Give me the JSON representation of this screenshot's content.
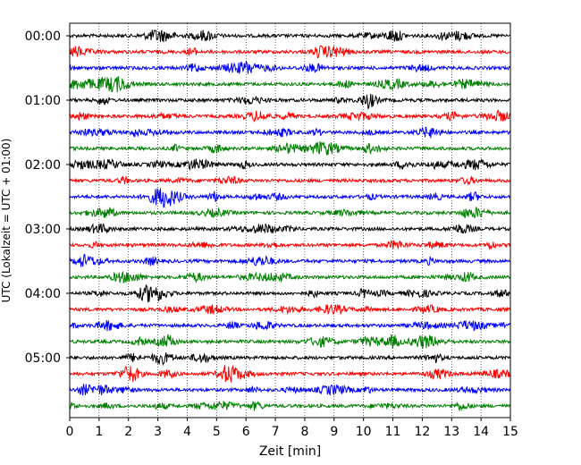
{
  "chart_data": {
    "type": "line",
    "title": "",
    "xlabel": "Zeit  [min]",
    "ylabel": "UTC (Lokalzeit = UTC + 01:00)",
    "xlim": [
      0,
      15
    ],
    "x_ticks": [
      "0",
      "1",
      "2",
      "3",
      "4",
      "5",
      "6",
      "7",
      "8",
      "9",
      "10",
      "11",
      "12",
      "13",
      "14",
      "15"
    ],
    "y_tick_labels": [
      "00:00",
      "01:00",
      "02:00",
      "03:00",
      "04:00",
      "05:00"
    ],
    "grid": "vertical dotted at each minute",
    "trace_interval_min": 15,
    "trace_count": 24,
    "trace_colors": [
      "#000000",
      "#ff0000",
      "#0000ff",
      "#008000"
    ],
    "legend": "none"
  }
}
